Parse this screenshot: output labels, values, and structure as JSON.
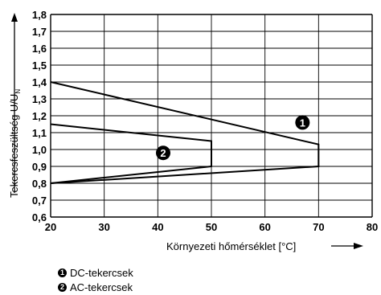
{
  "chart_data": {
    "type": "line",
    "xlabel": "Környezeti hőmérséklet [°C]",
    "ylabel": "Tekercsfeszültség U/U",
    "ylabel_sub": "N",
    "xlim": [
      20,
      80
    ],
    "ylim": [
      0.6,
      1.8
    ],
    "x_ticks": [
      "20",
      "30",
      "40",
      "50",
      "60",
      "70",
      "80"
    ],
    "y_ticks": [
      "0,6",
      "0,7",
      "0,8",
      "0,9",
      "1,0",
      "1,1",
      "1,2",
      "1,3",
      "1,4",
      "1,5",
      "1,6",
      "1,7",
      "1,8"
    ],
    "grid": true,
    "series": [
      {
        "name": "DC-tekercsek",
        "marker": "1",
        "points": [
          [
            20,
            1.4
          ],
          [
            70,
            1.03
          ],
          [
            70,
            0.9
          ],
          [
            20,
            0.8
          ]
        ]
      },
      {
        "name": "AC-tekercsek",
        "marker": "2",
        "points": [
          [
            20,
            1.15
          ],
          [
            50,
            1.05
          ],
          [
            50,
            0.9
          ],
          [
            20,
            0.8
          ]
        ]
      }
    ],
    "marker_positions": [
      {
        "label": "1",
        "x": 67,
        "y": 1.16
      },
      {
        "label": "2",
        "x": 41,
        "y": 0.98
      }
    ]
  },
  "legend": [
    {
      "marker": "1",
      "label": "DC-tekercsek"
    },
    {
      "marker": "2",
      "label": "AC-tekercsek"
    }
  ]
}
